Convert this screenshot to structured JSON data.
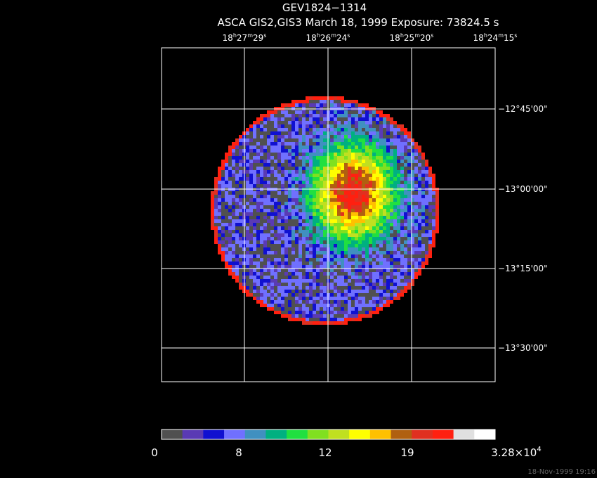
{
  "header": {
    "title": "GEV1824−1314",
    "subtitle": "ASCA GIS2,GIS3 March 18, 1999 Exposure: 73824.5 s"
  },
  "ra_labels": [
    [
      "18",
      "h",
      "27",
      "m",
      "29",
      "s"
    ],
    [
      "18",
      "h",
      "26",
      "m",
      "24",
      "s"
    ],
    [
      "18",
      "h",
      "25",
      "m",
      "20",
      "s"
    ],
    [
      "18",
      "h",
      "24",
      "m",
      "15",
      "s"
    ]
  ],
  "dec_labels": [
    "−12°45'00\"",
    "−13°00'00\"",
    "−13°15'00\"",
    "−13°30'00\""
  ],
  "colorbar_labels": [
    [
      "0"
    ],
    [
      "8"
    ],
    [
      "12"
    ],
    [
      "19"
    ],
    [
      "3.28×10",
      "4"
    ]
  ],
  "footer": "18-Nov-1999 19:16"
}
